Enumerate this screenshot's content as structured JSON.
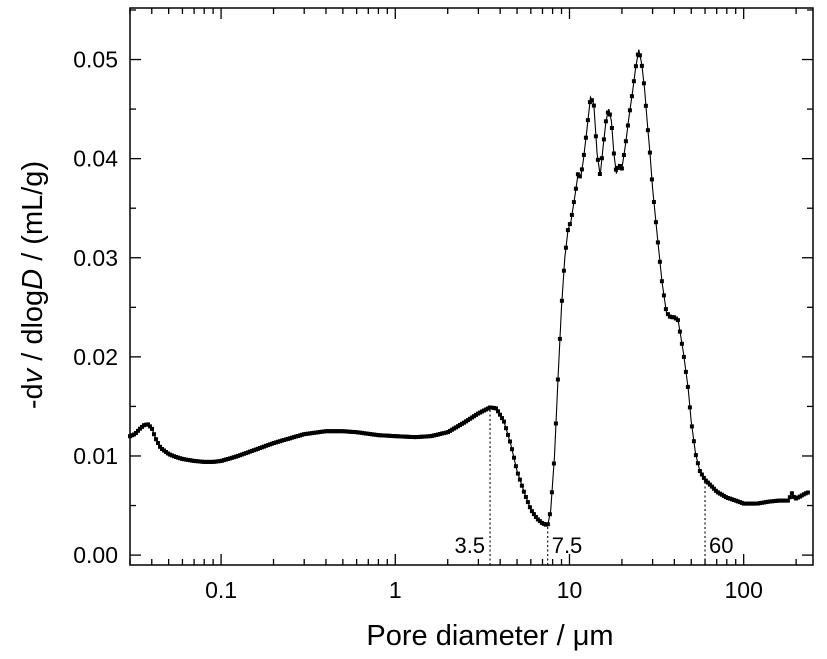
{
  "chart_data": {
    "type": "line",
    "title": "",
    "xlabel": "Pore diameter / μm",
    "ylabel": {
      "prefix": "-d",
      "v": "v",
      "mid": " / dlog",
      "D": "D",
      "suffix": " / (mL/g)"
    },
    "xscale": "log",
    "xlim": [
      0.03,
      250
    ],
    "ylim": [
      -0.001,
      0.0552
    ],
    "xticks": [
      {
        "value": 0.1,
        "label": "0.1"
      },
      {
        "value": 1,
        "label": "1"
      },
      {
        "value": 10,
        "label": "10"
      },
      {
        "value": 100,
        "label": "100"
      }
    ],
    "yticks": [
      {
        "value": 0.0,
        "label": "0.00"
      },
      {
        "value": 0.01,
        "label": "0.01"
      },
      {
        "value": 0.02,
        "label": "0.02"
      },
      {
        "value": 0.03,
        "label": "0.03"
      },
      {
        "value": 0.04,
        "label": "0.04"
      },
      {
        "value": 0.05,
        "label": "0.05"
      }
    ],
    "grid": false,
    "annotations": [
      {
        "x": 3.5,
        "label": "3.5",
        "side": "left"
      },
      {
        "x": 7.5,
        "label": "7.5",
        "side": "right"
      },
      {
        "x": 60,
        "label": "60",
        "side": "right"
      }
    ],
    "series": [
      {
        "x": [
          0.03,
          0.032,
          0.034,
          0.036,
          0.038,
          0.04,
          0.042,
          0.045,
          0.05,
          0.055,
          0.06,
          0.07,
          0.08,
          0.09,
          0.1,
          0.12,
          0.15,
          0.2,
          0.25,
          0.3,
          0.4,
          0.5,
          0.6,
          0.8,
          1.0,
          1.3,
          1.6,
          2.0,
          2.5,
          3.0,
          3.5,
          3.8,
          4.2,
          4.6,
          5.0,
          5.5,
          6.0,
          6.5,
          7.0,
          7.5,
          7.8,
          8.2,
          8.6,
          9.0,
          9.4,
          9.8,
          10.2,
          10.8,
          11.2,
          11.6,
          12.0,
          12.6,
          13.2,
          13.8,
          14.4,
          15.0,
          15.6,
          16.2,
          16.8,
          17.4,
          18.0,
          18.6,
          19.2,
          20.0,
          21.0,
          22.0,
          23.0,
          24.0,
          25.0,
          26.0,
          27.0,
          28.0,
          29.0,
          30.0,
          32.0,
          34.0,
          36.0,
          38.0,
          40.0,
          42.0,
          45.0,
          48.0,
          50.0,
          53.0,
          56.0,
          60.0,
          65.0,
          70.0,
          80.0,
          90.0,
          100.0,
          120.0,
          140.0,
          160.0,
          180.0,
          190.0,
          195.0,
          200.0,
          210.0,
          225.0,
          240.0
        ],
        "y": [
          0.012,
          0.0122,
          0.0127,
          0.0131,
          0.0132,
          0.0128,
          0.0118,
          0.0108,
          0.0102,
          0.0099,
          0.0097,
          0.0095,
          0.0094,
          0.0094,
          0.0095,
          0.0099,
          0.0105,
          0.0113,
          0.0118,
          0.0122,
          0.0125,
          0.0125,
          0.0124,
          0.0121,
          0.012,
          0.0119,
          0.012,
          0.0124,
          0.0134,
          0.0143,
          0.0149,
          0.0148,
          0.0135,
          0.0112,
          0.0085,
          0.0063,
          0.0046,
          0.0037,
          0.0032,
          0.003,
          0.0045,
          0.01,
          0.018,
          0.025,
          0.03,
          0.0328,
          0.0337,
          0.0365,
          0.0385,
          0.0381,
          0.0398,
          0.043,
          0.0462,
          0.0455,
          0.0405,
          0.0383,
          0.0412,
          0.0438,
          0.045,
          0.0438,
          0.0405,
          0.0385,
          0.0394,
          0.039,
          0.0415,
          0.0443,
          0.0467,
          0.0492,
          0.051,
          0.0495,
          0.047,
          0.0435,
          0.0405,
          0.037,
          0.032,
          0.0275,
          0.0245,
          0.024,
          0.024,
          0.0237,
          0.0205,
          0.0168,
          0.0135,
          0.0102,
          0.0085,
          0.0076,
          0.007,
          0.0064,
          0.0058,
          0.0055,
          0.0052,
          0.0052,
          0.0054,
          0.0055,
          0.0055,
          0.0063,
          0.0058,
          0.0057,
          0.0059,
          0.0062,
          0.0064
        ]
      }
    ]
  }
}
